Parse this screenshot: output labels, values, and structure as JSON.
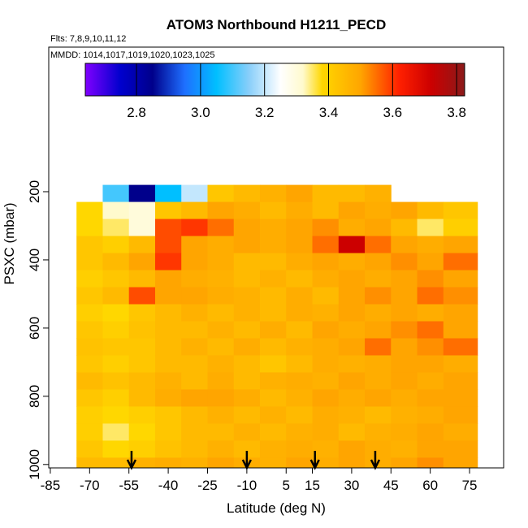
{
  "chart_data": {
    "type": "heatmap",
    "title": "ATOM3 Northbound H1211_PECD",
    "subtitle": "Flts: 7,8,9,10,11,12",
    "annotation": "MMDD: 1014,1017,1019,1020,1023,1025",
    "x_label": "Latitude (deg N)",
    "y_label": "PSXC (mbar)",
    "xlim": [
      -85.6,
      88
    ],
    "xticks": [
      -85,
      -70,
      -55,
      -40,
      -25,
      -10,
      5,
      15,
      30,
      45,
      60,
      75
    ],
    "ylim": [
      1010,
      -224
    ],
    "yticks": [
      200,
      400,
      600,
      800,
      1000
    ],
    "x_edges": [
      -75,
      -65,
      -55,
      -45,
      -35,
      -25,
      -15,
      -5,
      5,
      15,
      25,
      35,
      45,
      55,
      65,
      78
    ],
    "y_edges": [
      180,
      230,
      280,
      330,
      380,
      430,
      480,
      530,
      580,
      630,
      680,
      730,
      780,
      830,
      880,
      930,
      980,
      1010
    ],
    "z": [
      [
        null,
        3.1,
        2.85,
        3.05,
        3.2,
        3.42,
        3.45,
        3.47,
        3.5,
        3.45,
        3.45,
        3.47,
        null,
        null,
        null
      ],
      [
        3.38,
        3.32,
        3.3,
        3.42,
        3.45,
        3.5,
        3.48,
        3.45,
        3.48,
        3.45,
        3.5,
        3.48,
        3.5,
        3.45,
        3.42
      ],
      [
        3.38,
        3.35,
        3.3,
        3.58,
        3.6,
        3.55,
        3.5,
        3.48,
        3.5,
        3.52,
        3.48,
        3.5,
        3.45,
        3.35,
        3.4
      ],
      [
        3.42,
        3.4,
        3.45,
        3.58,
        3.5,
        3.48,
        3.5,
        3.48,
        3.5,
        3.55,
        3.72,
        3.55,
        3.5,
        3.48,
        3.5
      ],
      [
        3.42,
        3.45,
        3.5,
        3.6,
        3.5,
        3.48,
        3.45,
        3.45,
        3.48,
        3.5,
        3.48,
        3.5,
        3.52,
        3.5,
        3.55
      ],
      [
        3.4,
        3.42,
        3.45,
        3.5,
        3.48,
        3.47,
        3.45,
        3.47,
        3.45,
        3.48,
        3.5,
        3.48,
        3.5,
        3.52,
        3.5
      ],
      [
        3.42,
        3.45,
        3.58,
        3.5,
        3.5,
        3.48,
        3.47,
        3.45,
        3.48,
        3.45,
        3.5,
        3.52,
        3.5,
        3.55,
        3.52
      ],
      [
        3.4,
        3.38,
        3.42,
        3.45,
        3.47,
        3.45,
        3.47,
        3.45,
        3.48,
        3.47,
        3.5,
        3.48,
        3.5,
        3.48,
        3.5
      ],
      [
        3.42,
        3.4,
        3.43,
        3.45,
        3.45,
        3.47,
        3.45,
        3.48,
        3.45,
        3.5,
        3.48,
        3.5,
        3.52,
        3.55,
        3.5
      ],
      [
        3.43,
        3.42,
        3.42,
        3.45,
        3.47,
        3.45,
        3.48,
        3.45,
        3.47,
        3.48,
        3.5,
        3.55,
        3.5,
        3.52,
        3.55
      ],
      [
        3.42,
        3.4,
        3.42,
        3.45,
        3.45,
        3.47,
        3.45,
        3.42,
        3.45,
        3.48,
        3.47,
        3.48,
        3.5,
        3.5,
        3.48
      ],
      [
        3.45,
        3.43,
        3.45,
        3.47,
        3.45,
        3.48,
        3.45,
        3.47,
        3.48,
        3.47,
        3.5,
        3.48,
        3.5,
        3.48,
        3.5
      ],
      [
        3.42,
        3.4,
        3.45,
        3.48,
        3.5,
        3.5,
        3.48,
        3.45,
        3.47,
        3.5,
        3.48,
        3.5,
        3.48,
        3.5,
        3.5
      ],
      [
        3.4,
        3.38,
        3.4,
        3.42,
        3.45,
        3.47,
        3.45,
        3.47,
        3.45,
        3.48,
        3.47,
        3.45,
        3.47,
        3.48,
        3.5
      ],
      [
        3.4,
        3.35,
        3.38,
        3.42,
        3.45,
        3.45,
        3.47,
        3.45,
        3.47,
        3.48,
        3.45,
        3.47,
        3.48,
        3.5,
        3.48
      ],
      [
        3.42,
        3.38,
        3.4,
        3.43,
        3.45,
        3.47,
        3.45,
        3.47,
        3.48,
        3.47,
        3.5,
        3.48,
        3.47,
        3.5,
        3.5
      ],
      [
        3.45,
        3.45,
        3.47,
        3.48,
        3.47,
        3.5,
        3.48,
        3.47,
        3.5,
        3.48,
        3.5,
        3.48,
        3.5,
        3.52,
        3.5
      ]
    ],
    "arrows": [
      -54,
      -10,
      16,
      39
    ],
    "colorbar": {
      "lim": [
        2.64,
        3.825
      ],
      "ticks": [
        2.8,
        {
          "value": 3,
          "label": "3.0"
        },
        3.2,
        3.4,
        3.6,
        3.8
      ],
      "stops": [
        [
          2.64,
          "#8000ff"
        ],
        [
          2.75,
          "#0000cd"
        ],
        [
          2.85,
          "#00008b"
        ],
        [
          2.95,
          "#1e6fff"
        ],
        [
          3.05,
          "#00bfff"
        ],
        [
          3.15,
          "#87cefa"
        ],
        [
          3.25,
          "#ffffff"
        ],
        [
          3.32,
          "#fffacd"
        ],
        [
          3.38,
          "#ffd700"
        ],
        [
          3.5,
          "#ffa500"
        ],
        [
          3.62,
          "#ff2000"
        ],
        [
          3.72,
          "#cc0000"
        ],
        [
          3.825,
          "#8b1a1a"
        ]
      ]
    }
  }
}
